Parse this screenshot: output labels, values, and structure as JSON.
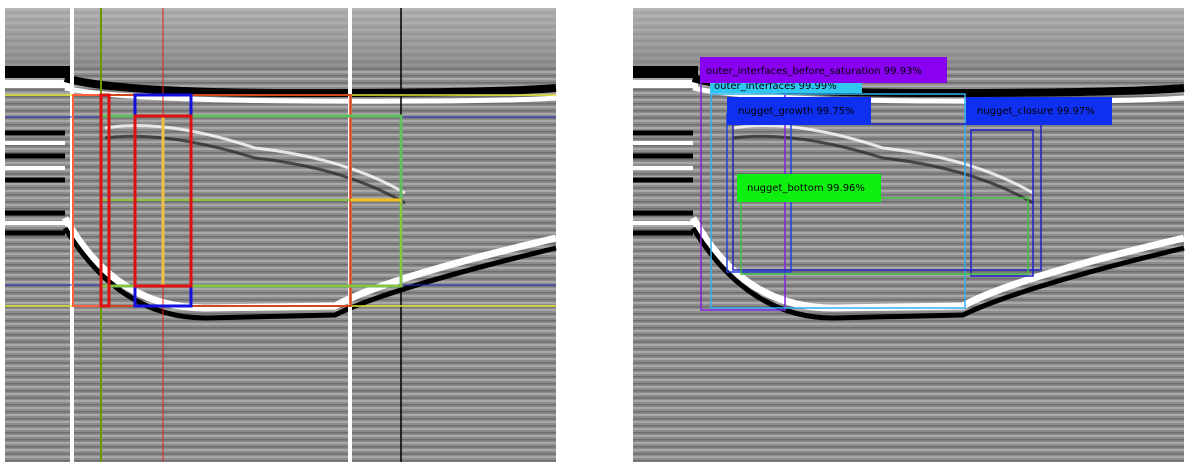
{
  "detections": [
    {
      "label": "outer_interfaces_before_saturation 99.93%"
    },
    {
      "label": "outer_interfaces 99.99%"
    },
    {
      "label": "nugget_growth 99.75%"
    },
    {
      "label": "nugget_closure 99.97%"
    },
    {
      "label": "nugget_bottom 99.96%"
    }
  ]
}
